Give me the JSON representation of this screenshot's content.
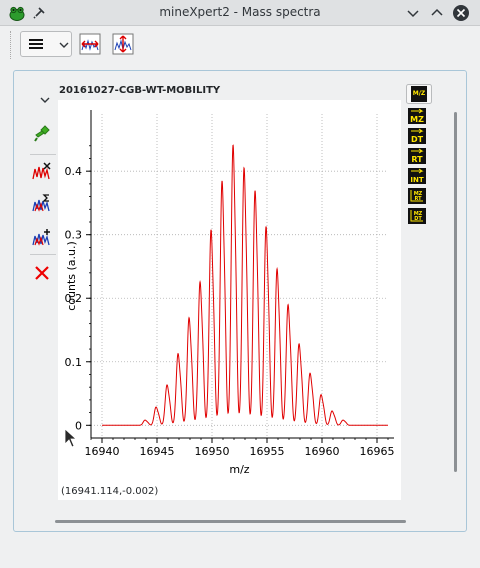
{
  "window": {
    "title": "mineXpert2 - Mass spectra"
  },
  "plot": {
    "dataset_title": "20161027-CGB-WT-MOBILITY",
    "coordinates": "(16941.114,-0.002)"
  },
  "icons": {
    "app": "frog-icon",
    "pin": "pin-icon",
    "menu": "hamburger-menu-icon",
    "chevron": "chevron-down-icon",
    "minimize": "chevron-down-icon",
    "maximize": "chevron-up-icon",
    "close": "close-icon"
  },
  "chart_data": {
    "type": "line",
    "xlabel": "m/z",
    "ylabel": "counts (a.u.)",
    "xlim": [
      16939,
      16966
    ],
    "ylim": [
      -0.02,
      0.49
    ],
    "x_ticks": [
      16940,
      16945,
      16950,
      16955,
      16960,
      16965
    ],
    "y_ticks": [
      0,
      0.1,
      0.2,
      0.3,
      0.4
    ],
    "x_tick_labels": [
      "16940",
      "16945",
      "16950",
      "16955",
      "16960",
      "16965"
    ],
    "y_tick_labels": [
      "0",
      "0.1",
      "0.2",
      "0.3",
      "0.4"
    ],
    "grid": true,
    "line_color": "#e00000",
    "peaks": [
      {
        "mz": 16943.9,
        "intensity": 0.008
      },
      {
        "mz": 16944.9,
        "intensity": 0.028
      },
      {
        "mz": 16945.9,
        "intensity": 0.062
      },
      {
        "mz": 16946.9,
        "intensity": 0.11
      },
      {
        "mz": 16947.9,
        "intensity": 0.165
      },
      {
        "mz": 16948.9,
        "intensity": 0.22
      },
      {
        "mz": 16949.9,
        "intensity": 0.3
      },
      {
        "mz": 16950.9,
        "intensity": 0.375
      },
      {
        "mz": 16951.9,
        "intensity": 0.43
      },
      {
        "mz": 16952.9,
        "intensity": 0.395
      },
      {
        "mz": 16953.9,
        "intensity": 0.36
      },
      {
        "mz": 16954.9,
        "intensity": 0.305
      },
      {
        "mz": 16955.9,
        "intensity": 0.24
      },
      {
        "mz": 16956.9,
        "intensity": 0.185
      },
      {
        "mz": 16957.9,
        "intensity": 0.125
      },
      {
        "mz": 16958.9,
        "intensity": 0.08
      },
      {
        "mz": 16959.9,
        "intensity": 0.047
      },
      {
        "mz": 16960.9,
        "intensity": 0.022
      },
      {
        "mz": 16961.9,
        "intensity": 0.008
      }
    ]
  }
}
